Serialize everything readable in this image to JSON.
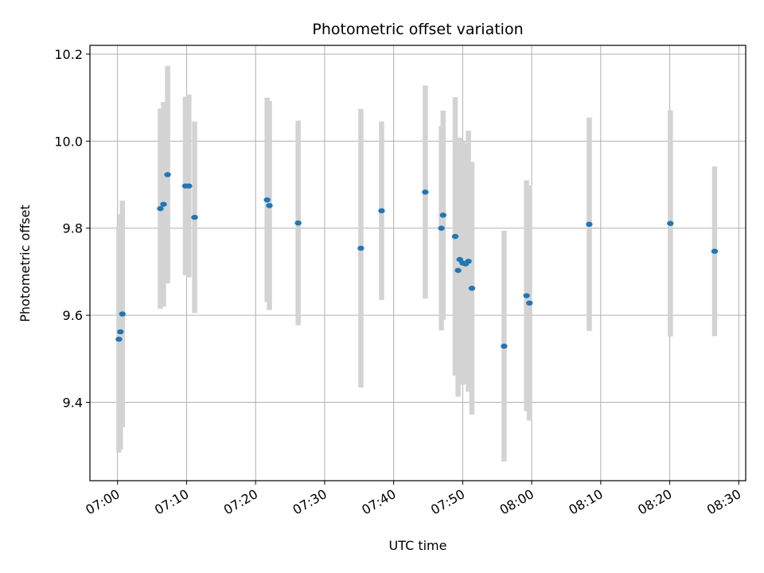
{
  "chart_data": {
    "type": "scatter",
    "title": "Photometric offset variation",
    "xlabel": "UTC time",
    "ylabel": "Photometric offset",
    "x_unit": "time (HH:MM, UTC)",
    "xlim": [
      "06:56",
      "08:31"
    ],
    "ylim": [
      9.22,
      10.22
    ],
    "grid": true,
    "x_ticks": [
      "07:00",
      "07:10",
      "07:20",
      "07:30",
      "07:40",
      "07:50",
      "08:00",
      "08:10",
      "08:20",
      "08:30"
    ],
    "y_ticks": [
      "9.4",
      "9.6",
      "9.8",
      "10.0",
      "10.2"
    ],
    "point_color": "#1f77b4",
    "errorbar_color": "#d3d3d3",
    "points": [
      {
        "x": "07:00:12",
        "y": 9.545,
        "err": 0.26
      },
      {
        "x": "07:00:25",
        "y": 9.562,
        "err": 0.27
      },
      {
        "x": "07:00:42",
        "y": 9.603,
        "err": 0.26
      },
      {
        "x": "07:06:12",
        "y": 9.845,
        "err": 0.23
      },
      {
        "x": "07:06:40",
        "y": 9.855,
        "err": 0.235
      },
      {
        "x": "07:07:15",
        "y": 9.923,
        "err": 0.25
      },
      {
        "x": "07:09:50",
        "y": 9.897,
        "err": 0.205
      },
      {
        "x": "07:10:20",
        "y": 9.897,
        "err": 0.21
      },
      {
        "x": "07:11:10",
        "y": 9.825,
        "err": 0.22
      },
      {
        "x": "07:21:40",
        "y": 9.865,
        "err": 0.235
      },
      {
        "x": "07:22:00",
        "y": 9.852,
        "err": 0.24
      },
      {
        "x": "07:26:10",
        "y": 9.812,
        "err": 0.235
      },
      {
        "x": "07:35:15",
        "y": 9.754,
        "err": 0.32
      },
      {
        "x": "07:38:15",
        "y": 9.84,
        "err": 0.205
      },
      {
        "x": "07:44:35",
        "y": 9.883,
        "err": 0.245
      },
      {
        "x": "07:46:55",
        "y": 9.8,
        "err": 0.235
      },
      {
        "x": "07:47:10",
        "y": 9.83,
        "err": 0.24
      },
      {
        "x": "07:48:55",
        "y": 9.781,
        "err": 0.32
      },
      {
        "x": "07:49:20",
        "y": 9.703,
        "err": 0.29
      },
      {
        "x": "07:49:35",
        "y": 9.728,
        "err": 0.28
      },
      {
        "x": "07:50:00",
        "y": 9.72,
        "err": 0.28
      },
      {
        "x": "07:50:25",
        "y": 9.718,
        "err": 0.275
      },
      {
        "x": "07:50:50",
        "y": 9.724,
        "err": 0.3
      },
      {
        "x": "07:51:20",
        "y": 9.662,
        "err": 0.29
      },
      {
        "x": "07:56:00",
        "y": 9.529,
        "err": 0.265
      },
      {
        "x": "07:59:15",
        "y": 9.645,
        "err": 0.265
      },
      {
        "x": "07:59:40",
        "y": 9.628,
        "err": 0.27
      },
      {
        "x": "08:08:20",
        "y": 9.809,
        "err": 0.245
      },
      {
        "x": "08:20:05",
        "y": 9.811,
        "err": 0.26
      },
      {
        "x": "08:26:30",
        "y": 9.747,
        "err": 0.195
      }
    ]
  }
}
